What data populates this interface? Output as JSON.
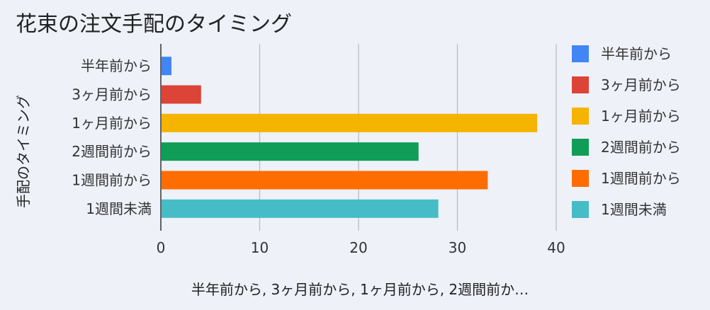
{
  "chart_data": {
    "type": "bar",
    "orientation": "horizontal",
    "title": "花束の注文手配のタイミング",
    "xlabel": "半年前から, 3ヶ月前から, 1ヶ月前から, 2週間前か…",
    "ylabel": "手配のタイミング",
    "categories": [
      "半年前から",
      "3ヶ月前から",
      "1ヶ月前から",
      "2週間前から",
      "1週間前から",
      "1週間未満"
    ],
    "values": [
      1,
      4,
      38,
      26,
      33,
      28
    ],
    "colors": [
      "#4285F4",
      "#DB4437",
      "#F4B400",
      "#0F9D58",
      "#FF6D00",
      "#46BDC6"
    ],
    "xlim": [
      0,
      40
    ],
    "xticks": [
      0,
      10,
      20,
      30,
      40
    ],
    "grid": true,
    "legend_position": "right"
  }
}
